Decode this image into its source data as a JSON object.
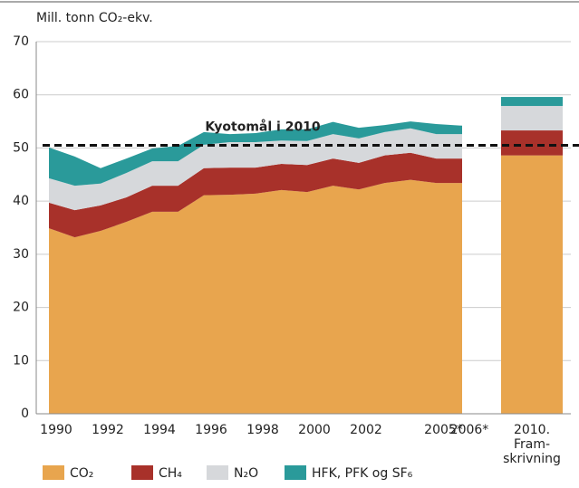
{
  "chart_data": {
    "type": "area",
    "y_label": "Mill. tonn CO₂-ekv.",
    "categories": [
      "1990",
      null,
      "1992",
      null,
      "1994",
      null,
      "1996",
      null,
      "1998",
      null,
      "2000",
      null,
      "2002",
      null,
      null,
      "2005*",
      "2006*"
    ],
    "series": [
      {
        "name": "CO₂",
        "color": "#e8a54e",
        "values": [
          34.9,
          33.2,
          34.4,
          36.1,
          38.0,
          38.0,
          41.1,
          41.2,
          41.4,
          42.1,
          41.7,
          42.9,
          42.2,
          43.4,
          44.0,
          43.4,
          43.4
        ]
      },
      {
        "name": "CH₄",
        "color": "#a8312a",
        "values": [
          4.8,
          5.1,
          4.8,
          4.6,
          4.9,
          4.9,
          5.1,
          5.1,
          4.9,
          4.9,
          5.1,
          5.1,
          5.0,
          5.2,
          5.1,
          4.6,
          4.6
        ]
      },
      {
        "name": "N₂O",
        "color": "#d6d8db",
        "values": [
          4.6,
          4.6,
          4.1,
          4.6,
          4.6,
          4.6,
          4.4,
          4.8,
          4.8,
          4.4,
          4.5,
          4.6,
          4.6,
          4.4,
          4.6,
          4.6,
          4.6
        ]
      },
      {
        "name": "HFK, PFK og SF₆",
        "color": "#2a9a9a",
        "values": [
          5.8,
          5.5,
          2.9,
          2.7,
          2.4,
          2.9,
          2.4,
          1.5,
          1.7,
          2.1,
          2.2,
          2.3,
          2.0,
          1.3,
          1.3,
          1.9,
          1.6
        ]
      }
    ],
    "projection": {
      "label": [
        "2010.",
        "Fram-",
        "skrivning"
      ],
      "values": [
        48.6,
        4.7,
        4.6,
        1.7
      ]
    },
    "target": {
      "label": "Kyotomål i 2010",
      "value": 50.5
    },
    "ylim": [
      0,
      70
    ],
    "yticks": [
      0,
      10,
      20,
      30,
      40,
      50,
      60,
      70
    ],
    "grid": true
  }
}
